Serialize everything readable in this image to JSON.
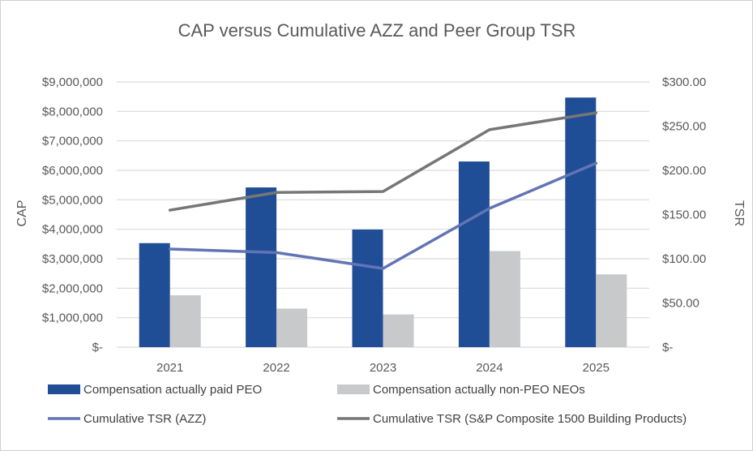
{
  "chart_data": {
    "type": "bar",
    "title": "CAP versus Cumulative AZZ and Peer Group TSR",
    "categories": [
      "2021",
      "2022",
      "2023",
      "2024",
      "2025"
    ],
    "y_left": {
      "label": "CAP",
      "ylim": [
        0,
        9000000
      ],
      "ticks": [
        0,
        1000000,
        2000000,
        3000000,
        4000000,
        5000000,
        6000000,
        7000000,
        8000000,
        9000000
      ],
      "tick_labels": [
        "$-",
        "$1,000,000",
        "$2,000,000",
        "$3,000,000",
        "$4,000,000",
        "$5,000,000",
        "$6,000,000",
        "$7,000,000",
        "$8,000,000",
        "$9,000,000"
      ]
    },
    "y_right": {
      "label": "TSR",
      "ylim": [
        0,
        300
      ],
      "ticks": [
        0,
        50,
        100,
        150,
        200,
        250,
        300
      ],
      "tick_labels": [
        "$-",
        "$50.00",
        "$100.00",
        "$150.00",
        "$200.00",
        "$250.00",
        "$300.00"
      ]
    },
    "grid": true,
    "legend_position": "bottom",
    "series": [
      {
        "name": "Compensation actually paid PEO",
        "type": "bar",
        "axis": "left",
        "color": "#1f4e96",
        "values": [
          3530000,
          5420000,
          3990000,
          6300000,
          8470000
        ]
      },
      {
        "name": "Compensation actually non-PEO NEOs",
        "type": "bar",
        "axis": "left",
        "color": "#c8c9cb",
        "values": [
          1760000,
          1310000,
          1110000,
          3260000,
          2470000
        ]
      },
      {
        "name": "Cumulative TSR (AZZ)",
        "type": "line",
        "axis": "right",
        "color": "#6274b4",
        "values": [
          111,
          107,
          89,
          157,
          208
        ]
      },
      {
        "name": "Cumulative TSR (S&P Composite 1500 Building Products)",
        "type": "line",
        "axis": "right",
        "color": "#767676",
        "values": [
          155,
          175,
          176,
          246,
          265
        ]
      }
    ]
  }
}
